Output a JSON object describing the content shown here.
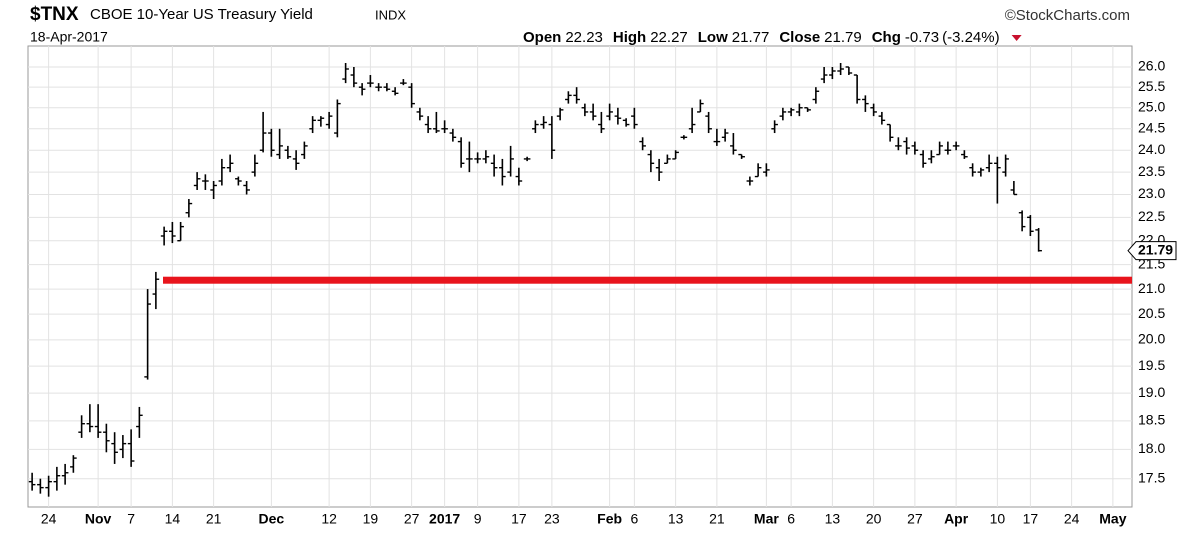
{
  "header": {
    "symbol": "$TNX",
    "name": "CBOE 10-Year US Treasury Yield",
    "exchange": "INDX",
    "date": "18-Apr-2017",
    "credit": "©StockCharts.com",
    "open_label": "Open",
    "high_label": "High",
    "low_label": "Low",
    "close_label": "Close",
    "change_label": "Chg",
    "change": "-0.73",
    "change_pct": "(-3.24%)"
  },
  "chart_data": {
    "type": "ohlc",
    "color": "#000000",
    "log_scale": true,
    "grid": true,
    "ylim": [
      17.03,
      26.53
    ],
    "yticks": [
      17.5,
      {
        "value": 18,
        "label": "18.0"
      },
      18.5,
      {
        "value": 19,
        "label": "19.0"
      },
      19.5,
      {
        "value": 20,
        "label": "20.0"
      },
      20.5,
      {
        "value": 21,
        "label": "21.0"
      },
      21.5,
      {
        "value": 22,
        "label": "22.0"
      },
      22.5,
      {
        "value": 23,
        "label": "23.0"
      },
      23.5,
      {
        "value": 24,
        "label": "24.0"
      },
      24.5,
      {
        "value": 25,
        "label": "25.0"
      },
      25.5,
      {
        "value": 26,
        "label": "26.0"
      }
    ],
    "hline": {
      "value": 21.18,
      "color": "#e8141c"
    },
    "categories": [
      null,
      null,
      "24",
      null,
      null,
      null,
      null,
      null,
      "Nov",
      null,
      null,
      null,
      "7",
      null,
      null,
      null,
      null,
      "14",
      null,
      null,
      null,
      null,
      "21",
      null,
      null,
      null,
      null,
      null,
      null,
      "Dec",
      null,
      null,
      null,
      null,
      null,
      null,
      "12",
      null,
      null,
      null,
      null,
      "19",
      null,
      null,
      null,
      null,
      "27",
      null,
      null,
      null,
      "2017",
      null,
      null,
      null,
      "9",
      null,
      null,
      null,
      null,
      "17",
      null,
      null,
      null,
      "23",
      null,
      null,
      null,
      null,
      null,
      null,
      "Feb",
      null,
      null,
      "6",
      null,
      null,
      null,
      null,
      "13",
      null,
      null,
      null,
      null,
      "21",
      null,
      null,
      null,
      null,
      null,
      "Mar",
      null,
      null,
      "6",
      null,
      null,
      null,
      null,
      "13",
      null,
      null,
      null,
      null,
      "20",
      null,
      null,
      null,
      null,
      "27",
      null,
      null,
      null,
      null,
      "Apr",
      null,
      null,
      null,
      null,
      "10",
      null,
      null,
      null,
      "17",
      null,
      null,
      null,
      null,
      "24",
      null,
      null,
      null,
      null,
      "May"
    ],
    "open": [
      17.45,
      17.4,
      17.35,
      17.45,
      17.55,
      17.7,
      18.3,
      18.45,
      18.4,
      18.3,
      18.1,
      18.0,
      18.1,
      18.4,
      19.3,
      20.9,
      22.1,
      22.2,
      22.0,
      22.6,
      23.2,
      23.3,
      23.1,
      23.3,
      23.6,
      23.35,
      23.2,
      23.5,
      24.0,
      24.4,
      23.9,
      24.0,
      23.8,
      23.9,
      24.5,
      24.7,
      24.6,
      24.4,
      25.7,
      25.8,
      25.5,
      25.6,
      25.5,
      25.5,
      25.4,
      25.6,
      25.5,
      24.9,
      24.6,
      24.5,
      24.5,
      24.4,
      24.2,
      23.8,
      23.8,
      23.8,
      23.7,
      23.6,
      23.5,
      23.4,
      23.8,
      24.5,
      24.6,
      24.6,
      24.8,
      25.2,
      25.3,
      25.0,
      24.9,
      24.6,
      24.8,
      24.8,
      24.7,
      24.8,
      24.2,
      23.9,
      23.6,
      23.7,
      23.8,
      24.3,
      24.5,
      24.9,
      24.8,
      24.2,
      24.3,
      24.1,
      23.9,
      23.3,
      23.4,
      23.5,
      24.5,
      24.8,
      24.9,
      24.9,
      25.0,
      25.2,
      25.7,
      25.8,
      25.9,
      26.0,
      25.8,
      25.2,
      25.0,
      24.8,
      24.6,
      24.1,
      24.2,
      24.1,
      23.9,
      23.8,
      23.9,
      24.0,
      24.1,
      23.9,
      23.6,
      23.5,
      23.6,
      23.7,
      23.5,
      23.1,
      22.6,
      22.5,
      22.23,
      null,
      null,
      null,
      null,
      null,
      null,
      null,
      null,
      null
    ],
    "high": [
      17.6,
      17.5,
      17.55,
      17.7,
      17.75,
      17.9,
      18.6,
      18.8,
      18.8,
      18.45,
      18.3,
      18.25,
      18.35,
      18.75,
      21.0,
      21.35,
      22.3,
      22.4,
      22.4,
      22.9,
      23.5,
      23.45,
      23.3,
      23.8,
      23.9,
      23.4,
      23.3,
      23.9,
      24.9,
      24.5,
      24.5,
      24.1,
      24.0,
      24.2,
      24.8,
      24.8,
      24.9,
      25.2,
      26.1,
      26.0,
      25.6,
      25.8,
      25.6,
      25.6,
      25.5,
      25.7,
      25.6,
      25.0,
      24.8,
      24.9,
      24.7,
      24.5,
      24.3,
      24.2,
      23.95,
      24.0,
      23.9,
      23.8,
      24.1,
      23.6,
      23.85,
      24.7,
      24.8,
      24.8,
      25.0,
      25.4,
      25.5,
      25.1,
      25.1,
      24.9,
      25.1,
      25.0,
      24.75,
      25.0,
      24.3,
      24.0,
      23.8,
      23.9,
      24.0,
      24.35,
      25.0,
      25.2,
      24.9,
      24.5,
      24.5,
      24.4,
      23.9,
      23.4,
      23.7,
      23.7,
      24.7,
      25.0,
      25.0,
      25.1,
      25.0,
      25.5,
      26.0,
      26.0,
      26.1,
      26.0,
      25.8,
      25.3,
      25.1,
      24.9,
      24.6,
      24.3,
      24.3,
      24.2,
      24.0,
      24.0,
      24.2,
      24.2,
      24.2,
      24.0,
      23.7,
      23.6,
      23.9,
      23.85,
      23.9,
      23.3,
      22.65,
      22.55,
      22.27,
      null,
      null,
      null,
      null,
      null,
      null,
      null,
      null,
      null
    ],
    "low": [
      17.3,
      17.25,
      17.2,
      17.3,
      17.4,
      17.6,
      18.2,
      18.3,
      18.2,
      17.95,
      17.75,
      17.85,
      17.7,
      18.2,
      19.25,
      20.6,
      21.9,
      21.95,
      22.0,
      22.5,
      23.1,
      23.1,
      22.9,
      23.2,
      23.5,
      23.2,
      23.0,
      23.4,
      23.95,
      23.85,
      23.8,
      23.8,
      23.55,
      23.8,
      24.4,
      24.55,
      24.5,
      24.3,
      25.6,
      25.5,
      25.3,
      25.5,
      25.4,
      25.4,
      25.3,
      25.55,
      25.0,
      24.7,
      24.4,
      24.4,
      24.4,
      24.2,
      23.6,
      23.5,
      23.7,
      23.7,
      23.4,
      23.2,
      23.4,
      23.2,
      23.75,
      24.4,
      24.5,
      23.8,
      24.7,
      25.1,
      25.1,
      24.8,
      24.7,
      24.4,
      24.7,
      24.6,
      24.55,
      24.5,
      24.0,
      23.5,
      23.3,
      23.7,
      23.8,
      24.25,
      24.4,
      24.9,
      24.4,
      24.1,
      24.2,
      23.9,
      23.8,
      23.2,
      23.4,
      23.4,
      24.4,
      24.7,
      24.8,
      24.8,
      24.9,
      25.1,
      25.6,
      25.7,
      25.8,
      25.8,
      25.1,
      24.9,
      24.8,
      24.6,
      24.2,
      24.0,
      23.9,
      23.9,
      23.6,
      23.7,
      23.9,
      23.9,
      24.0,
      23.8,
      23.4,
      23.4,
      23.5,
      22.8,
      23.4,
      23.0,
      22.2,
      22.1,
      21.77,
      null,
      null,
      null,
      null,
      null,
      null,
      null,
      null,
      null
    ],
    "close": [
      17.4,
      17.35,
      17.45,
      17.55,
      17.6,
      17.85,
      18.45,
      18.4,
      18.3,
      18.15,
      17.95,
      18.1,
      17.8,
      18.6,
      20.7,
      21.2,
      22.2,
      22.1,
      22.3,
      22.8,
      23.35,
      23.3,
      23.2,
      23.6,
      23.7,
      23.3,
      23.1,
      23.7,
      24.4,
      24.0,
      24.1,
      23.85,
      23.7,
      24.1,
      24.7,
      24.75,
      24.8,
      25.1,
      25.95,
      25.6,
      25.45,
      25.6,
      25.5,
      25.45,
      25.35,
      25.6,
      25.1,
      24.8,
      24.5,
      24.45,
      24.5,
      24.3,
      23.7,
      23.8,
      23.8,
      23.85,
      23.6,
      23.4,
      23.8,
      23.3,
      23.8,
      24.6,
      24.65,
      24.0,
      24.95,
      25.3,
      25.2,
      24.9,
      24.8,
      24.5,
      24.9,
      24.75,
      24.6,
      24.6,
      24.1,
      23.7,
      23.5,
      23.8,
      23.95,
      24.3,
      24.6,
      25.1,
      24.5,
      24.2,
      24.4,
      24.0,
      23.85,
      23.3,
      23.6,
      23.55,
      24.6,
      24.9,
      24.95,
      25.0,
      24.95,
      25.4,
      25.8,
      25.9,
      25.95,
      25.85,
      25.2,
      25.1,
      24.9,
      24.7,
      24.3,
      24.1,
      24.05,
      24.0,
      23.7,
      23.85,
      24.1,
      24.0,
      24.1,
      23.85,
      23.5,
      23.55,
      23.7,
      23.6,
      23.8,
      23.0,
      22.3,
      22.2,
      21.79,
      null,
      null,
      null,
      null,
      null,
      null,
      null,
      null,
      null
    ]
  }
}
